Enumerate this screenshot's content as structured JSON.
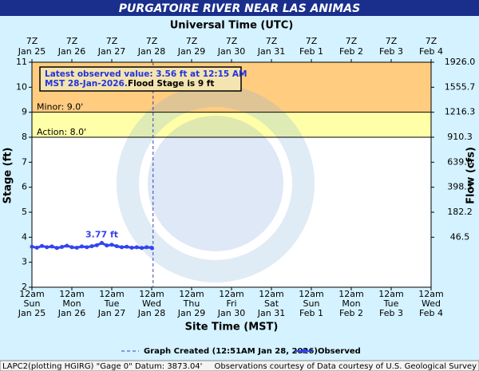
{
  "chart_data": {
    "type": "line",
    "title": "PURGATOIRE RIVER NEAR LAS ANIMAS",
    "x2_title": "Universal Time (UTC)",
    "x_title": "Site Time (MST)",
    "y_title": "Stage (ft)",
    "y2_title": "Flow (cfs)",
    "xlim": [
      "2026-01-25T00:00",
      "2026-02-04T00:00"
    ],
    "ylim": [
      2,
      11
    ],
    "yticks": [
      2,
      3,
      4,
      5,
      6,
      7,
      8,
      9,
      10,
      11
    ],
    "y2_rating": [
      {
        "stage": 11,
        "label": "1926.0"
      },
      {
        "stage": 10,
        "label": "1555.7"
      },
      {
        "stage": 9,
        "label": "1216.3"
      },
      {
        "stage": 8,
        "label": "910.3"
      },
      {
        "stage": 7,
        "label": "639.0"
      },
      {
        "stage": 6,
        "label": "398.3"
      },
      {
        "stage": 5,
        "label": "182.2"
      },
      {
        "stage": 4,
        "label": "46.5"
      }
    ],
    "xticks": [
      {
        "value": "2026-01-25T00:00",
        "label": [
          "12am",
          "Sun",
          "Jan 25"
        ]
      },
      {
        "value": "2026-01-26T00:00",
        "label": [
          "12am",
          "Mon",
          "Jan 26"
        ]
      },
      {
        "value": "2026-01-27T00:00",
        "label": [
          "12am",
          "Tue",
          "Jan 27"
        ]
      },
      {
        "value": "2026-01-28T00:00",
        "label": [
          "12am",
          "Wed",
          "Jan 28"
        ]
      },
      {
        "value": "2026-01-29T00:00",
        "label": [
          "12am",
          "Thu",
          "Jan 29"
        ]
      },
      {
        "value": "2026-01-30T00:00",
        "label": [
          "12am",
          "Fri",
          "Jan 30"
        ]
      },
      {
        "value": "2026-01-31T00:00",
        "label": [
          "12am",
          "Sat",
          "Jan 31"
        ]
      },
      {
        "value": "2026-02-01T00:00",
        "label": [
          "12am",
          "Sun",
          "Feb 1"
        ]
      },
      {
        "value": "2026-02-02T00:00",
        "label": [
          "12am",
          "Mon",
          "Feb 2"
        ]
      },
      {
        "value": "2026-02-03T00:00",
        "label": [
          "12am",
          "Tue",
          "Feb 3"
        ]
      },
      {
        "value": "2026-02-04T00:00",
        "label": [
          "12am",
          "Wed",
          "Feb 4"
        ]
      }
    ],
    "x2ticks": [
      {
        "value": "2026-01-25T00:00",
        "label": [
          "7Z",
          "Jan 25"
        ]
      },
      {
        "value": "2026-01-26T00:00",
        "label": [
          "7Z",
          "Jan 26"
        ]
      },
      {
        "value": "2026-01-27T00:00",
        "label": [
          "7Z",
          "Jan 27"
        ]
      },
      {
        "value": "2026-01-28T00:00",
        "label": [
          "7Z",
          "Jan 28"
        ]
      },
      {
        "value": "2026-01-29T00:00",
        "label": [
          "7Z",
          "Jan 29"
        ]
      },
      {
        "value": "2026-01-30T00:00",
        "label": [
          "7Z",
          "Jan 30"
        ]
      },
      {
        "value": "2026-01-31T00:00",
        "label": [
          "7Z",
          "Jan 31"
        ]
      },
      {
        "value": "2026-02-01T00:00",
        "label": [
          "7Z",
          "Feb 1"
        ]
      },
      {
        "value": "2026-02-02T00:00",
        "label": [
          "7Z",
          "Feb 2"
        ]
      },
      {
        "value": "2026-02-03T00:00",
        "label": [
          "7Z",
          "Feb 3"
        ]
      },
      {
        "value": "2026-02-04T00:00",
        "label": [
          "7Z",
          "Feb 4"
        ]
      }
    ],
    "flood_categories": [
      {
        "label": "Minor: 9.0'",
        "value": 9,
        "color": "#ffcc80"
      },
      {
        "label": "Action: 8.0'",
        "value": 8,
        "color": "#ffffa8"
      }
    ],
    "x": [
      "2026-01-25T00:00",
      "2026-01-25T03:00",
      "2026-01-25T06:00",
      "2026-01-25T09:00",
      "2026-01-25T12:00",
      "2026-01-25T15:00",
      "2026-01-25T18:00",
      "2026-01-25T21:00",
      "2026-01-26T00:00",
      "2026-01-26T03:00",
      "2026-01-26T06:00",
      "2026-01-26T09:00",
      "2026-01-26T12:00",
      "2026-01-26T15:00",
      "2026-01-26T18:00",
      "2026-01-26T21:00",
      "2026-01-27T00:00",
      "2026-01-27T03:00",
      "2026-01-27T06:00",
      "2026-01-27T09:00",
      "2026-01-27T12:00",
      "2026-01-27T15:00",
      "2026-01-27T18:00",
      "2026-01-27T21:00",
      "2026-01-28T00:00",
      "2026-01-28T00:15"
    ],
    "series": [
      {
        "name": "Observed",
        "color": "#3344ee",
        "values": [
          3.62,
          3.58,
          3.65,
          3.6,
          3.63,
          3.57,
          3.61,
          3.66,
          3.6,
          3.58,
          3.63,
          3.6,
          3.64,
          3.68,
          3.77,
          3.67,
          3.7,
          3.64,
          3.6,
          3.62,
          3.58,
          3.6,
          3.57,
          3.6,
          3.58,
          3.56
        ]
      }
    ],
    "peak_label": {
      "index": 14,
      "label": "3.77 ft"
    },
    "latest": [
      "Latest observed value: 3.56 ft at 12:15 AM",
      "MST 28-Jan-2026.",
      "Flood Stage is 9 ft"
    ],
    "created": {
      "x": "2026-01-28T00:51",
      "label": "Graph Created (12:51AM Jan 28, 2026)"
    },
    "footer": [
      "LAPC2(plotting HGIRG) \"Gage 0\" Datum: 3873.04'",
      "Observations courtesy of Data courtesy of U.S. Geological Survey"
    ]
  }
}
